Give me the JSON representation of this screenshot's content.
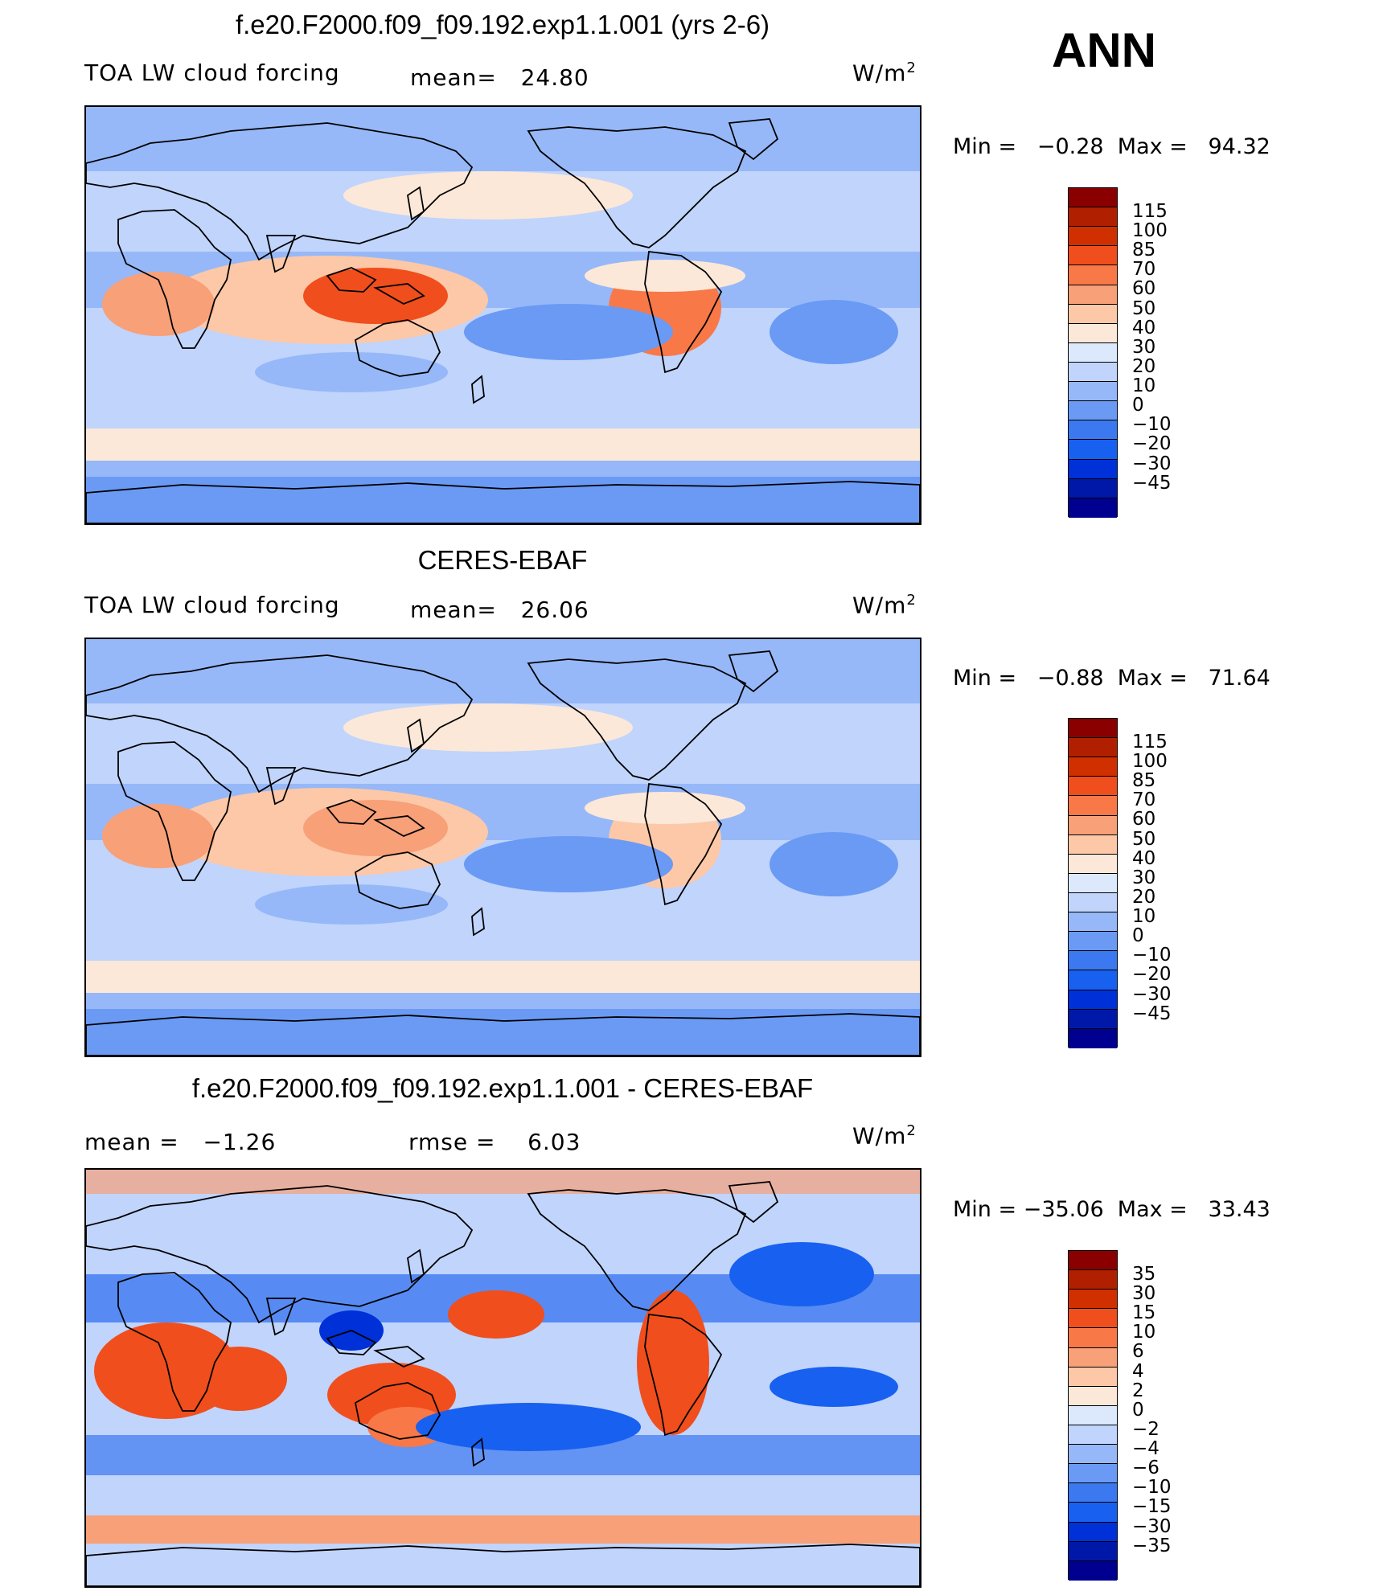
{
  "season": "ANN",
  "units": "W/m",
  "units_sup": "2",
  "colors": {
    "abs_scale": [
      "#000090",
      "#0018a8",
      "#0030d8",
      "#1860f0",
      "#3c78f0",
      "#6a9af4",
      "#96b8f8",
      "#c0d4fc",
      "#dce8fc",
      "#fce8d8",
      "#fcc8a8",
      "#f8a078",
      "#f87848",
      "#f04e1c",
      "#d03000",
      "#b02000",
      "#8a0000"
    ],
    "diff_scale": [
      "#000090",
      "#0018a8",
      "#0030d8",
      "#1860f0",
      "#3c78f0",
      "#6a9af4",
      "#96b8f8",
      "#c0d4fc",
      "#dce8fc",
      "#fce8d8",
      "#fcc8a8",
      "#f8a078",
      "#f87848",
      "#f04e1c",
      "#d03000",
      "#b02000",
      "#8a0000"
    ],
    "ocean_low": "#7aa2f4",
    "ocean_mid": "#c6dafc",
    "warm": "#fcc8a8",
    "hot": "#f06a3c",
    "coast": "#000000"
  },
  "panels": [
    {
      "title": "f.e20.F2000.f09_f09.192.exp1.1.001 (yrs 2-6)",
      "left_label": "TOA LW cloud forcing",
      "mid_label": "mean=   24.80",
      "minmax": "Min =   −0.28  Max =   94.32",
      "ticks": [
        "115",
        "100",
        "85",
        "70",
        "60",
        "50",
        "40",
        "30",
        "20",
        "10",
        "0",
        "−10",
        "−20",
        "−30",
        "−45"
      ],
      "scale": "abs_scale",
      "variant": "model"
    },
    {
      "title": "CERES-EBAF",
      "left_label": "TOA LW cloud forcing",
      "mid_label": "mean=   26.06",
      "minmax": "Min =   −0.88  Max =   71.64",
      "ticks": [
        "115",
        "100",
        "85",
        "70",
        "60",
        "50",
        "40",
        "30",
        "20",
        "10",
        "0",
        "−10",
        "−20",
        "−30",
        "−45"
      ],
      "scale": "abs_scale",
      "variant": "obs"
    },
    {
      "title": "f.e20.F2000.f09_f09.192.exp1.1.001 - CERES-EBAF",
      "left_label": "mean =   −1.26",
      "mid_label": "rmse =    6.03",
      "minmax": "Min = −35.06  Max =   33.43",
      "ticks": [
        "35",
        "30",
        "15",
        "10",
        "6",
        "4",
        "2",
        "0",
        "−2",
        "−4",
        "−6",
        "−10",
        "−15",
        "−30",
        "−35"
      ],
      "scale": "diff_scale",
      "variant": "diff"
    }
  ]
}
